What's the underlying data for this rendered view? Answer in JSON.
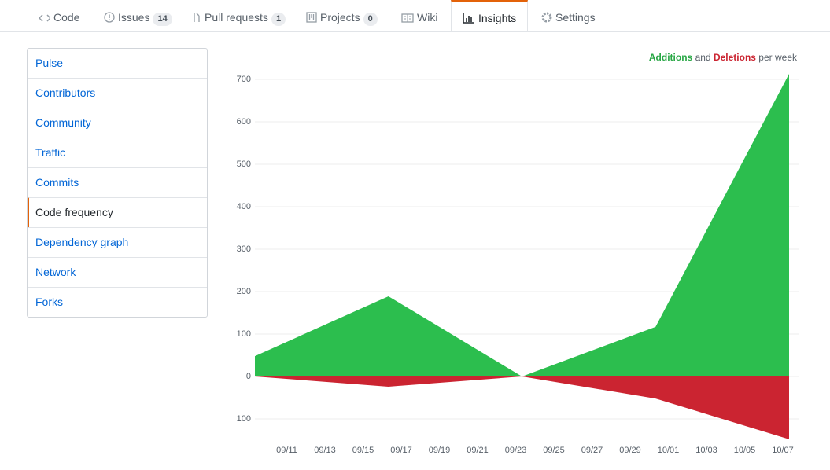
{
  "tabs": [
    {
      "label": "Code"
    },
    {
      "label": "Issues",
      "count": 14
    },
    {
      "label": "Pull requests",
      "count": 1
    },
    {
      "label": "Projects",
      "count": 0
    },
    {
      "label": "Wiki"
    },
    {
      "label": "Insights"
    },
    {
      "label": "Settings"
    }
  ],
  "sidebar": [
    "Pulse",
    "Contributors",
    "Community",
    "Traffic",
    "Commits",
    "Code frequency",
    "Dependency graph",
    "Network",
    "Forks"
  ],
  "chart_data": {
    "type": "area",
    "legend_joiner": "and",
    "legend_suffix": "per week",
    "x": [
      "09/09",
      "09/16",
      "09/23",
      "09/30",
      "10/07"
    ],
    "series": [
      {
        "name": "Additions",
        "color": "#2cbe4e",
        "values": [
          48,
          189,
          0,
          117,
          713
        ]
      },
      {
        "name": "Deletions",
        "color": "#cb2431",
        "values": [
          0,
          -24,
          0,
          -52,
          -148
        ]
      }
    ],
    "xlim": [
      "09/09",
      "10/07"
    ],
    "xticks": [
      "09/11",
      "09/13",
      "09/15",
      "09/17",
      "09/19",
      "09/21",
      "09/23",
      "09/25",
      "09/27",
      "09/29",
      "10/01",
      "10/03",
      "10/05",
      "10/07"
    ],
    "ylim": [
      -160,
      720
    ],
    "yticks": [
      {
        "value": -100,
        "label": "100"
      },
      0,
      100,
      200,
      300,
      400,
      500,
      600,
      700
    ],
    "grid": true
  }
}
